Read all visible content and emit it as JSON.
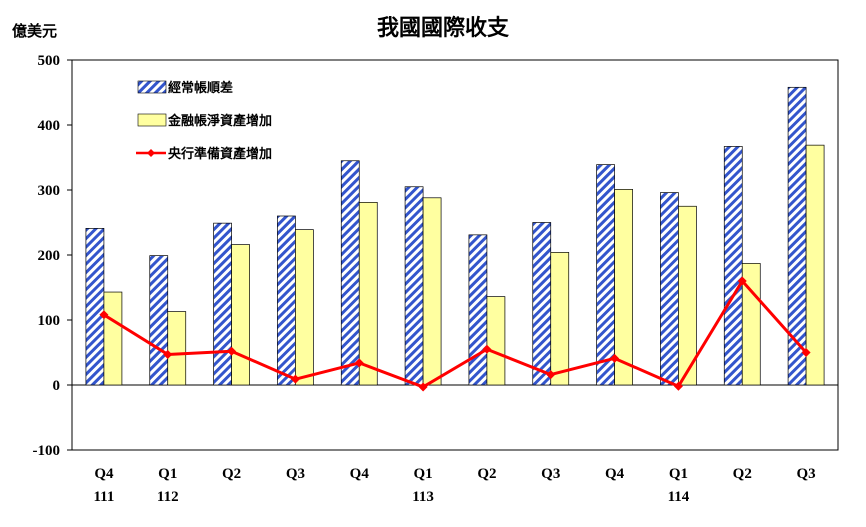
{
  "chart_data": {
    "type": "bar",
    "title": "我國國際收支",
    "ylabel": "億美元",
    "ylim": [
      -100,
      500
    ],
    "yticks": [
      500,
      400,
      300,
      200,
      100,
      0,
      -100
    ],
    "categories": [
      {
        "quarter": "Q4",
        "year": "111"
      },
      {
        "quarter": "Q1",
        "year": "112"
      },
      {
        "quarter": "Q2",
        "year": ""
      },
      {
        "quarter": "Q3",
        "year": ""
      },
      {
        "quarter": "Q4",
        "year": ""
      },
      {
        "quarter": "Q1",
        "year": "113"
      },
      {
        "quarter": "Q2",
        "year": ""
      },
      {
        "quarter": "Q3",
        "year": ""
      },
      {
        "quarter": "Q4",
        "year": ""
      },
      {
        "quarter": "Q1",
        "year": "114"
      },
      {
        "quarter": "Q2",
        "year": ""
      },
      {
        "quarter": "Q3",
        "year": ""
      }
    ],
    "series": [
      {
        "name": "經常帳順差",
        "kind": "bar",
        "pattern": "diagonal-hatch",
        "color": "#3355cc",
        "values": [
          241,
          199,
          249,
          260,
          345,
          305,
          231,
          250,
          339,
          296,
          367,
          458
        ]
      },
      {
        "name": "金融帳淨資產增加",
        "kind": "bar",
        "color": "#ffffa0",
        "values": [
          143,
          113,
          216,
          239,
          281,
          288,
          136,
          204,
          301,
          275,
          187,
          369
        ]
      },
      {
        "name": "央行準備資產增加",
        "kind": "line",
        "color": "#ff0000",
        "values": [
          108,
          47,
          52,
          9,
          34,
          -3,
          55,
          16,
          41,
          -2,
          160,
          50
        ]
      }
    ],
    "legend_position": "top-left",
    "grid": false
  }
}
